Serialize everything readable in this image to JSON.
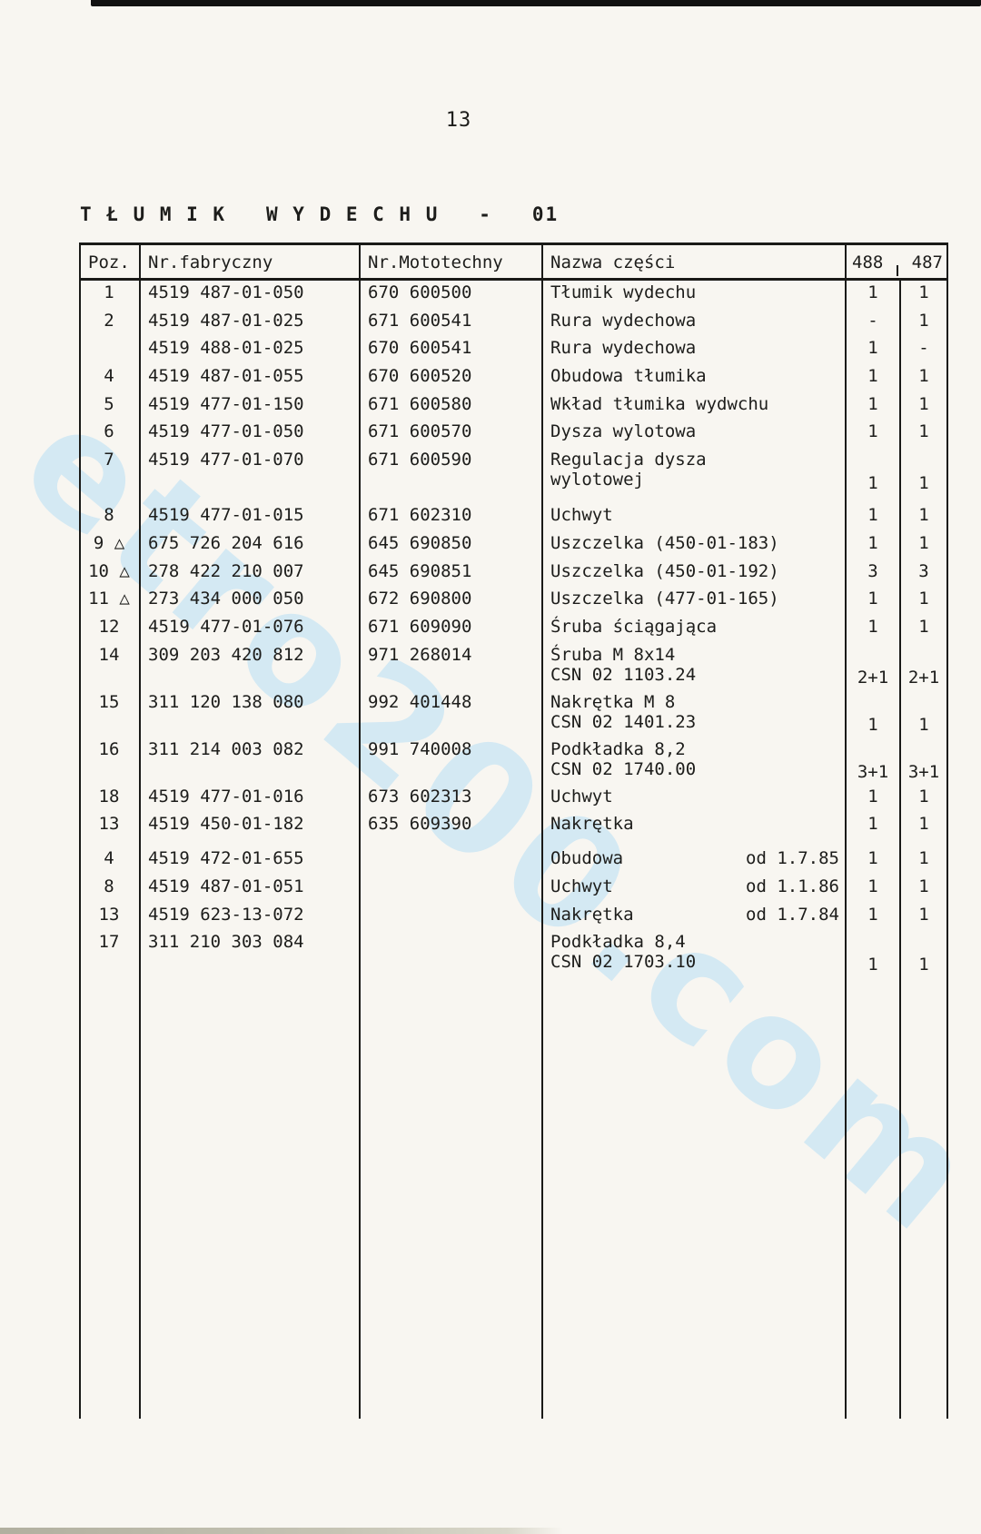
{
  "page": {
    "number": "13"
  },
  "title": "T Ł U M I K   W Y D E C H U   -   01",
  "watermark": {
    "text": "etro200.com",
    "color": "#bfe2f5"
  },
  "colors": {
    "ink": "#1d1d1b",
    "paper": "#f8f6f1",
    "watermark_blue": "#bfe2f5"
  },
  "table": {
    "headers": {
      "poz": "Poz.",
      "fab": "Nr.fabryczny",
      "moto": "Nr.Mototechny",
      "name": "Nazwa części",
      "c488": "488",
      "c487": "487"
    },
    "rows": [
      {
        "poz": "1",
        "fab": "4519 487-01-050",
        "moto": "670 600500",
        "name1": "Tłumik wydechu",
        "name2": "",
        "date": "",
        "q488": "1",
        "q487": "1"
      },
      {
        "poz": "2",
        "fab": "4519 487-01-025",
        "moto": "671 600541",
        "name1": "Rura wydechowa",
        "name2": "",
        "date": "",
        "q488": "-",
        "q487": "1"
      },
      {
        "poz": "",
        "fab": "4519 488-01-025",
        "moto": "670 600541",
        "name1": "Rura wydechowa",
        "name2": "",
        "date": "",
        "q488": "1",
        "q487": "-"
      },
      {
        "poz": "4",
        "fab": "4519 487-01-055",
        "moto": "670 600520",
        "name1": "Obudowa tłumika",
        "name2": "",
        "date": "",
        "q488": "1",
        "q487": "1"
      },
      {
        "poz": "5",
        "fab": "4519 477-01-150",
        "moto": "671 600580",
        "name1": "Wkład tłumika wydwchu",
        "name2": "",
        "date": "",
        "q488": "1",
        "q487": "1"
      },
      {
        "poz": "6",
        "fab": "4519 477-01-050",
        "moto": "671 600570",
        "name1": "Dysza wylotowa",
        "name2": "",
        "date": "",
        "q488": "1",
        "q487": "1"
      },
      {
        "poz": "7",
        "fab": "4519 477-01-070",
        "moto": "671 600590",
        "name1": "Regulacja dysza",
        "name2": "wylotowej",
        "date": "",
        "q488": "1",
        "q487": "1"
      },
      {
        "poz": "8",
        "fab": "4519 477-01-015",
        "moto": "671 602310",
        "name1": "Uchwyt",
        "name2": "",
        "date": "",
        "q488": "1",
        "q487": "1"
      },
      {
        "poz": "9 △",
        "fab": "675 726 204 616",
        "moto": "645 690850",
        "name1": "Uszczelka (450-01-183)",
        "name2": "",
        "date": "",
        "q488": "1",
        "q487": "1"
      },
      {
        "poz": "10 △",
        "fab": "278 422 210 007",
        "moto": "645 690851",
        "name1": "Uszczelka (450-01-192)",
        "name2": "",
        "date": "",
        "q488": "3",
        "q487": "3"
      },
      {
        "poz": "11 △",
        "fab": "273 434 000 050",
        "moto": "672 690800",
        "name1": "Uszczelka (477-01-165)",
        "name2": "",
        "date": "",
        "q488": "1",
        "q487": "1"
      },
      {
        "poz": "12",
        "fab": "4519 477-01-076",
        "moto": "671 609090",
        "name1": "Śruba ściągająca",
        "name2": "",
        "date": "",
        "q488": "1",
        "q487": "1"
      },
      {
        "poz": "14",
        "fab": "309 203 420 812",
        "moto": "971 268014",
        "name1": "Śruba M 8x14",
        "name2": "CSN 02 1103.24",
        "date": "",
        "q488": "2+1",
        "q487": "2+1"
      },
      {
        "poz": "15",
        "fab": "311 120 138 080",
        "moto": "992 401448",
        "name1": "Nakrętka M 8",
        "name2": "CSN 02 1401.23",
        "date": "",
        "q488": "1",
        "q487": "1"
      },
      {
        "poz": "16",
        "fab": "311 214 003 082",
        "moto": "991 740008",
        "name1": "Podkładka 8,2",
        "name2": "CSN 02 1740.00",
        "date": "",
        "q488": "3+1",
        "q487": "3+1"
      },
      {
        "poz": "18",
        "fab": "4519 477-01-016",
        "moto": "673 602313",
        "name1": "Uchwyt",
        "name2": "",
        "date": "",
        "q488": "1",
        "q487": "1"
      },
      {
        "poz": "13",
        "fab": "4519 450-01-182",
        "moto": "635 609390",
        "name1": "Nakrętka",
        "name2": "",
        "date": "",
        "q488": "1",
        "q487": "1"
      },
      {
        "poz": "4",
        "fab": "4519 472-01-655",
        "moto": "",
        "name1": "Obudowa",
        "name2": "",
        "date": "od 1.7.85",
        "q488": "1",
        "q487": "1"
      },
      {
        "poz": "8",
        "fab": "4519 487-01-051",
        "moto": "",
        "name1": "Uchwyt",
        "name2": "",
        "date": "od 1.1.86",
        "q488": "1",
        "q487": "1"
      },
      {
        "poz": "13",
        "fab": "4519 623-13-072",
        "moto": "",
        "name1": "Nakrętka",
        "name2": "",
        "date": "od 1.7.84",
        "q488": "1",
        "q487": "1"
      },
      {
        "poz": "17",
        "fab": "311 210 303 084",
        "moto": "",
        "name1": "Podkładka 8,4",
        "name2": "CSN 02 1703.10",
        "date": "",
        "q488": "1",
        "q487": "1"
      }
    ]
  }
}
